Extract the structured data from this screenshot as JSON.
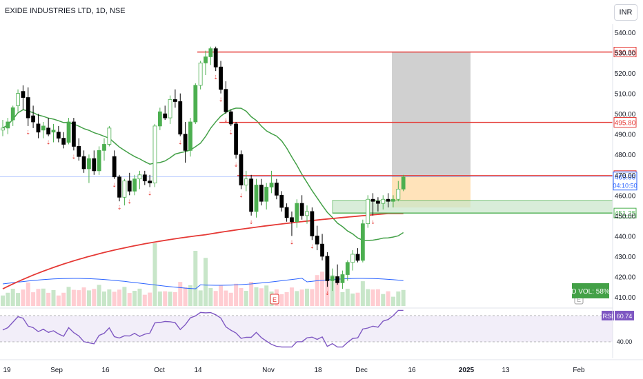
{
  "header": {
    "symbol_title": "EXIDE INDUSTRIES LTD, 1D, NSE",
    "currency": "INR"
  },
  "colors": {
    "up": "#4caf50",
    "down": "#000000",
    "sma_short": "#43a047",
    "sma_long": "#e53935",
    "vol_avg": "#2962ff",
    "rsi": "#7e57c2",
    "level_line": "#e53935",
    "zone": "#4caf50"
  },
  "chart_data": {
    "type": "candlestick",
    "price_axis": {
      "ylim": [
        405,
        545
      ],
      "ticks": [
        "540.00",
        "530.00",
        "520.00",
        "510.00",
        "500.00",
        "490.00",
        "480.00",
        "470.00",
        "460.00",
        "450.00",
        "440.00",
        "430.00",
        "420.00",
        "410.00"
      ]
    },
    "time_axis": {
      "labels": [
        "19",
        "Sep",
        "16",
        "Oct",
        "14",
        "Nov",
        "18",
        "Dec",
        "16",
        "2025",
        "13",
        "Feb"
      ]
    },
    "candles": [
      {
        "o": 492,
        "h": 497,
        "l": 489,
        "c": 493
      },
      {
        "o": 493,
        "h": 498,
        "l": 490,
        "c": 496
      },
      {
        "o": 497,
        "h": 504,
        "l": 494,
        "c": 503
      },
      {
        "o": 504,
        "h": 512,
        "l": 501,
        "c": 510
      },
      {
        "o": 511,
        "h": 514,
        "l": 502,
        "c": 508
      },
      {
        "o": 508,
        "h": 513,
        "l": 494,
        "c": 498
      },
      {
        "o": 499,
        "h": 504,
        "l": 493,
        "c": 496
      },
      {
        "o": 495,
        "h": 500,
        "l": 488,
        "c": 491
      },
      {
        "o": 492,
        "h": 496,
        "l": 488,
        "c": 494
      },
      {
        "o": 493,
        "h": 498,
        "l": 489,
        "c": 490
      },
      {
        "o": 491,
        "h": 495,
        "l": 486,
        "c": 492
      },
      {
        "o": 491,
        "h": 494,
        "l": 486,
        "c": 488
      },
      {
        "o": 488,
        "h": 491,
        "l": 483,
        "c": 485
      },
      {
        "o": 486,
        "h": 498,
        "l": 485,
        "c": 496
      },
      {
        "o": 496,
        "h": 498,
        "l": 482,
        "c": 484
      },
      {
        "o": 484,
        "h": 488,
        "l": 477,
        "c": 479
      },
      {
        "o": 479,
        "h": 482,
        "l": 471,
        "c": 473
      },
      {
        "o": 473,
        "h": 480,
        "l": 466,
        "c": 478
      },
      {
        "o": 478,
        "h": 482,
        "l": 470,
        "c": 472
      },
      {
        "o": 472,
        "h": 484,
        "l": 470,
        "c": 482
      },
      {
        "o": 482,
        "h": 488,
        "l": 477,
        "c": 485
      },
      {
        "o": 485,
        "h": 494,
        "l": 484,
        "c": 493
      },
      {
        "o": 479,
        "h": 482,
        "l": 468,
        "c": 469
      },
      {
        "o": 469,
        "h": 470,
        "l": 457,
        "c": 459
      },
      {
        "o": 459,
        "h": 468,
        "l": 455,
        "c": 467
      },
      {
        "o": 467,
        "h": 471,
        "l": 460,
        "c": 462
      },
      {
        "o": 462,
        "h": 470,
        "l": 460,
        "c": 468
      },
      {
        "o": 468,
        "h": 472,
        "l": 463,
        "c": 470
      },
      {
        "o": 470,
        "h": 472,
        "l": 465,
        "c": 467
      },
      {
        "o": 467,
        "h": 470,
        "l": 464,
        "c": 466
      },
      {
        "o": 466,
        "h": 495,
        "l": 464,
        "c": 494
      },
      {
        "o": 494,
        "h": 503,
        "l": 492,
        "c": 501
      },
      {
        "o": 500,
        "h": 504,
        "l": 497,
        "c": 498
      },
      {
        "o": 498,
        "h": 509,
        "l": 495,
        "c": 507
      },
      {
        "o": 507,
        "h": 512,
        "l": 503,
        "c": 506
      },
      {
        "o": 506,
        "h": 510,
        "l": 489,
        "c": 490
      },
      {
        "o": 490,
        "h": 496,
        "l": 476,
        "c": 482
      },
      {
        "o": 482,
        "h": 498,
        "l": 479,
        "c": 496
      },
      {
        "o": 496,
        "h": 515,
        "l": 495,
        "c": 514
      },
      {
        "o": 514,
        "h": 526,
        "l": 512,
        "c": 525
      },
      {
        "o": 525,
        "h": 531,
        "l": 519,
        "c": 528
      },
      {
        "o": 528,
        "h": 533,
        "l": 524,
        "c": 532
      },
      {
        "o": 532,
        "h": 533,
        "l": 521,
        "c": 523
      },
      {
        "o": 523,
        "h": 526,
        "l": 510,
        "c": 512
      },
      {
        "o": 512,
        "h": 516,
        "l": 500,
        "c": 501
      },
      {
        "o": 501,
        "h": 502,
        "l": 494,
        "c": 495
      },
      {
        "o": 495,
        "h": 496,
        "l": 478,
        "c": 480
      },
      {
        "o": 480,
        "h": 482,
        "l": 463,
        "c": 465
      },
      {
        "o": 465,
        "h": 472,
        "l": 462,
        "c": 468
      },
      {
        "o": 468,
        "h": 470,
        "l": 450,
        "c": 452
      },
      {
        "o": 452,
        "h": 468,
        "l": 449,
        "c": 465
      },
      {
        "o": 465,
        "h": 468,
        "l": 455,
        "c": 457
      },
      {
        "o": 457,
        "h": 466,
        "l": 453,
        "c": 464
      },
      {
        "o": 464,
        "h": 472,
        "l": 461,
        "c": 466
      },
      {
        "o": 466,
        "h": 468,
        "l": 458,
        "c": 460
      },
      {
        "o": 460,
        "h": 462,
        "l": 452,
        "c": 454
      },
      {
        "o": 454,
        "h": 456,
        "l": 447,
        "c": 449
      },
      {
        "o": 449,
        "h": 452,
        "l": 440,
        "c": 447
      },
      {
        "o": 447,
        "h": 458,
        "l": 444,
        "c": 456
      },
      {
        "o": 456,
        "h": 460,
        "l": 448,
        "c": 450
      },
      {
        "o": 450,
        "h": 455,
        "l": 446,
        "c": 452
      },
      {
        "o": 452,
        "h": 454,
        "l": 438,
        "c": 440
      },
      {
        "o": 440,
        "h": 445,
        "l": 433,
        "c": 436
      },
      {
        "o": 436,
        "h": 441,
        "l": 428,
        "c": 430
      },
      {
        "o": 430,
        "h": 432,
        "l": 415,
        "c": 418
      },
      {
        "o": 418,
        "h": 424,
        "l": 413,
        "c": 420
      },
      {
        "o": 420,
        "h": 426,
        "l": 416,
        "c": 417
      },
      {
        "o": 417,
        "h": 423,
        "l": 414,
        "c": 421
      },
      {
        "o": 421,
        "h": 428,
        "l": 418,
        "c": 427
      },
      {
        "o": 427,
        "h": 433,
        "l": 423,
        "c": 431
      },
      {
        "o": 431,
        "h": 434,
        "l": 427,
        "c": 428
      },
      {
        "o": 428,
        "h": 448,
        "l": 427,
        "c": 446
      },
      {
        "o": 446,
        "h": 460,
        "l": 444,
        "c": 458
      },
      {
        "o": 458,
        "h": 461,
        "l": 450,
        "c": 457
      },
      {
        "o": 457,
        "h": 459,
        "l": 452,
        "c": 456
      },
      {
        "o": 456,
        "h": 460,
        "l": 453,
        "c": 458
      },
      {
        "o": 458,
        "h": 461,
        "l": 454,
        "c": 457
      },
      {
        "o": 457,
        "h": 460,
        "l": 454,
        "c": 458
      },
      {
        "o": 458,
        "h": 467,
        "l": 457,
        "c": 463
      },
      {
        "o": 463,
        "h": 470,
        "l": 462,
        "c": 469
      }
    ],
    "horizontal_levels": [
      {
        "price": 530.35,
        "label": "530.35",
        "color": "#e53935"
      },
      {
        "price": 495.8,
        "label": "495.80",
        "color": "#e53935"
      },
      {
        "price": 469.65,
        "label": "469.65",
        "color": "#e53935"
      },
      {
        "price": 451.25,
        "label": "451.25",
        "color": "#4caf50"
      }
    ],
    "last_price": {
      "label": "469.00",
      "countdown": "04:10:50",
      "color": "#2962ff"
    },
    "zones": [
      {
        "name": "target",
        "from": 469,
        "to": 530.35,
        "color": "#c8c8c8"
      },
      {
        "name": "entry",
        "from": 454,
        "to": 469,
        "color": "#ffe0b2"
      },
      {
        "name": "demand",
        "from": 451.25,
        "to": 457.5,
        "color": "#c8e6c9"
      }
    ],
    "volume": {
      "badge": "D VOL: 58%"
    },
    "rsi": {
      "label": "RSI",
      "value": "60.74",
      "level_label": "40.00",
      "levels": [
        70,
        30
      ]
    },
    "event_marker": "E"
  }
}
